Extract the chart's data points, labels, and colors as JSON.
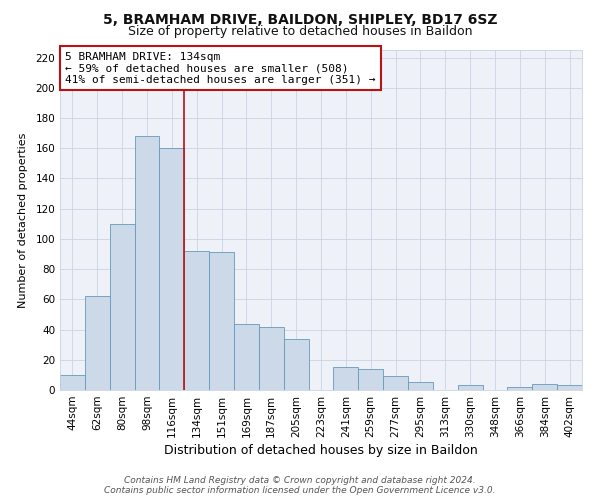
{
  "title": "5, BRAMHAM DRIVE, BAILDON, SHIPLEY, BD17 6SZ",
  "subtitle": "Size of property relative to detached houses in Baildon",
  "xlabel": "Distribution of detached houses by size in Baildon",
  "ylabel": "Number of detached properties",
  "categories": [
    "44sqm",
    "62sqm",
    "80sqm",
    "98sqm",
    "116sqm",
    "134sqm",
    "151sqm",
    "169sqm",
    "187sqm",
    "205sqm",
    "223sqm",
    "241sqm",
    "259sqm",
    "277sqm",
    "295sqm",
    "313sqm",
    "330sqm",
    "348sqm",
    "366sqm",
    "384sqm",
    "402sqm"
  ],
  "values": [
    10,
    62,
    110,
    168,
    160,
    92,
    91,
    44,
    42,
    34,
    0,
    15,
    14,
    9,
    5,
    0,
    3,
    0,
    2,
    4,
    3
  ],
  "bar_color": "#ccd9e8",
  "bar_edge_color": "#6699bb",
  "marker_index": 5,
  "marker_color": "#bb1111",
  "annotation_line1": "5 BRAMHAM DRIVE: 134sqm",
  "annotation_line2": "← 59% of detached houses are smaller (508)",
  "annotation_line3": "41% of semi-detached houses are larger (351) →",
  "annotation_box_edge_color": "#bb1111",
  "ylim": [
    0,
    225
  ],
  "yticks": [
    0,
    20,
    40,
    60,
    80,
    100,
    120,
    140,
    160,
    180,
    200,
    220
  ],
  "grid_color": "#c8d4e4",
  "background_color": "#ffffff",
  "plot_bg_color": "#eef2f8",
  "footer_line1": "Contains HM Land Registry data © Crown copyright and database right 2024.",
  "footer_line2": "Contains public sector information licensed under the Open Government Licence v3.0.",
  "title_fontsize": 10,
  "subtitle_fontsize": 9,
  "xlabel_fontsize": 9,
  "ylabel_fontsize": 8,
  "tick_fontsize": 7.5,
  "footer_fontsize": 6.5,
  "annotation_fontsize": 8
}
